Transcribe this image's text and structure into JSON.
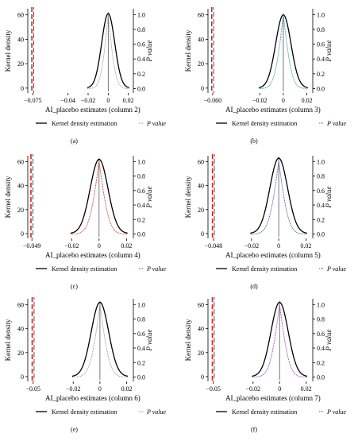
{
  "chart_data": [
    {
      "type": "line",
      "panel_label": "(a)",
      "xlabel": "AI_placebo estimates (column 2)",
      "ylabel_left": "Kernel density",
      "ylabel_right": "P value",
      "xlim": [
        -0.08,
        0.025
      ],
      "ylim_left": [
        -4,
        65
      ],
      "ylim_right": [
        -0.06,
        1.08
      ],
      "xticks": [
        -0.04,
        -0.02,
        0,
        0.02
      ],
      "xtick_labels": [
        "−0.04",
        "−0.02",
        "0",
        "0.02"
      ],
      "yticks_left": [
        0,
        20,
        40,
        60
      ],
      "yticks_right": [
        0.0,
        0.2,
        0.4,
        0.6,
        0.8,
        1.0
      ],
      "ytick_labels_right": [
        "0.0",
        "0.2",
        "0.4",
        "0.6",
        "0.8",
        "1.0"
      ],
      "true_estimate": -0.075,
      "true_estimate_label": "−0.075",
      "density_sd": 0.0065,
      "pvalue_spread": 0.0058,
      "pvalue_color": "#9a9a9a",
      "series": [
        {
          "name": "Kernel density estimation",
          "peak": 61
        },
        {
          "name": "P value"
        }
      ],
      "legend": {
        "position": "bottom",
        "entries": [
          "Kernel density estimation",
          "P value"
        ]
      }
    },
    {
      "type": "line",
      "panel_label": "(b)",
      "xlabel": "AI_placebo estimates (column 3)",
      "ylabel_left": "Kernel density",
      "ylabel_right": "P value",
      "xlim": [
        -0.064,
        0.025
      ],
      "ylim_left": [
        -4,
        65
      ],
      "ylim_right": [
        -0.06,
        1.08
      ],
      "xticks": [
        -0.02,
        0,
        0.02
      ],
      "xtick_labels": [
        "−0.02",
        "0",
        "0.02"
      ],
      "yticks_left": [
        0,
        20,
        40,
        60
      ],
      "yticks_right": [
        0.0,
        0.2,
        0.4,
        0.6,
        0.8,
        1.0
      ],
      "ytick_labels_right": [
        "0.0",
        "0.2",
        "0.4",
        "0.6",
        "0.8",
        "1.0"
      ],
      "true_estimate": -0.06,
      "true_estimate_label": "−0.060",
      "density_sd": 0.0065,
      "pvalue_spread": 0.0058,
      "pvalue_color": "#3a8f9a",
      "series": [
        {
          "name": "Kernel density estimation",
          "peak": 60
        },
        {
          "name": "P value"
        }
      ],
      "legend": {
        "position": "bottom",
        "entries": [
          "Kernel density estimation",
          "P value"
        ]
      }
    },
    {
      "type": "line",
      "panel_label": "(c)",
      "xlabel": "AI_placebo estimates (column 4)",
      "ylabel_left": "Kernel density",
      "ylabel_right": "P value",
      "xlim": [
        -0.052,
        0.025
      ],
      "ylim_left": [
        -4,
        65
      ],
      "ylim_right": [
        -0.06,
        1.08
      ],
      "xticks": [
        -0.02,
        0,
        0.02
      ],
      "xtick_labels": [
        "−0.02",
        "0",
        "0.02"
      ],
      "yticks_left": [
        0,
        20,
        40,
        60
      ],
      "yticks_right": [
        0.0,
        0.2,
        0.4,
        0.6,
        0.8,
        1.0
      ],
      "ytick_labels_right": [
        "0.0",
        "0.2",
        "0.4",
        "0.6",
        "0.8",
        "1.0"
      ],
      "true_estimate": -0.049,
      "true_estimate_label": "−0.049",
      "density_sd": 0.0065,
      "pvalue_spread": 0.0058,
      "pvalue_color": "#c0392b",
      "series": [
        {
          "name": "Kernel density estimation",
          "peak": 62
        },
        {
          "name": "P value"
        }
      ],
      "legend": {
        "position": "bottom",
        "entries": [
          "Kernel density estimation",
          "P value"
        ]
      }
    },
    {
      "type": "line",
      "panel_label": "(d)",
      "xlabel": "AI_placebo estimates (column 5)",
      "ylabel_left": "Kernel density",
      "ylabel_right": "P value",
      "xlim": [
        -0.052,
        0.025
      ],
      "ylim_left": [
        -4,
        65
      ],
      "ylim_right": [
        -0.06,
        1.08
      ],
      "xticks": [
        -0.02,
        0,
        0.02
      ],
      "xtick_labels": [
        "−0.02",
        "0",
        "0.02"
      ],
      "yticks_left": [
        0,
        20,
        40,
        60
      ],
      "yticks_right": [
        0.0,
        0.2,
        0.4,
        0.6,
        0.8,
        1.0
      ],
      "ytick_labels_right": [
        "0.0",
        "0.2",
        "0.4",
        "0.6",
        "0.8",
        "1.0"
      ],
      "true_estimate": -0.048,
      "true_estimate_label": "−0.048",
      "density_sd": 0.0065,
      "pvalue_spread": 0.0058,
      "pvalue_color": "#4a5aa8",
      "series": [
        {
          "name": "Kernel density estimation",
          "peak": 63
        },
        {
          "name": "P value"
        }
      ],
      "legend": {
        "position": "bottom",
        "entries": [
          "Kernel density estimation",
          "P value"
        ]
      }
    },
    {
      "type": "line",
      "panel_label": "(e)",
      "xlabel": "AI_placebo estimates (column 6)",
      "ylabel_left": "Kernel density",
      "ylabel_right": "P value",
      "xlim": [
        -0.054,
        0.025
      ],
      "ylim_left": [
        -4,
        65
      ],
      "ylim_right": [
        -0.06,
        1.08
      ],
      "xticks": [
        -0.02,
        0,
        0.02
      ],
      "xtick_labels": [
        "−0.02",
        "0",
        "0.02"
      ],
      "yticks_left": [
        0,
        20,
        40,
        60
      ],
      "yticks_right": [
        0.0,
        0.2,
        0.4,
        0.6,
        0.8,
        1.0
      ],
      "ytick_labels_right": [
        "0.0",
        "0.2",
        "0.4",
        "0.6",
        "0.8",
        "1.0"
      ],
      "true_estimate": -0.05,
      "true_estimate_label": "−0.05",
      "density_sd": 0.0065,
      "pvalue_spread": 0.0058,
      "pvalue_color": "#9a9a9a",
      "series": [
        {
          "name": "Kernel density estimation",
          "peak": 62
        },
        {
          "name": "P value"
        }
      ],
      "legend": {
        "position": "bottom",
        "entries": [
          "Kernel density estimation",
          "P value"
        ]
      }
    },
    {
      "type": "line",
      "panel_label": "(f)",
      "xlabel": "AI_placebo estimates (column 7)",
      "ylabel_left": "Kernel density",
      "ylabel_right": "P value",
      "xlim": [
        -0.054,
        0.025
      ],
      "ylim_left": [
        -4,
        65
      ],
      "ylim_right": [
        -0.06,
        1.08
      ],
      "xticks": [
        -0.02,
        0,
        0.02
      ],
      "xtick_labels": [
        "−0.02",
        "0",
        "0.02"
      ],
      "yticks_left": [
        0,
        20,
        40,
        60
      ],
      "yticks_right": [
        0.0,
        0.2,
        0.4,
        0.6,
        0.8,
        1.0
      ],
      "ytick_labels_right": [
        "0.0",
        "0.2",
        "0.4",
        "0.6",
        "0.8",
        "1.0"
      ],
      "true_estimate": -0.05,
      "true_estimate_label": "−0.05",
      "density_sd": 0.0065,
      "pvalue_spread": 0.0058,
      "pvalue_color": "#8e44ad",
      "series": [
        {
          "name": "Kernel density estimation",
          "peak": 62
        },
        {
          "name": "P value"
        }
      ],
      "legend": {
        "position": "bottom",
        "entries": [
          "Kernel density estimation",
          "P value"
        ]
      }
    }
  ],
  "colors": {
    "density_line": "#000000",
    "true_estimate_line": "#cc2222",
    "true_estimate_dash": "#2b2b2b",
    "zero_line": "#555555"
  }
}
